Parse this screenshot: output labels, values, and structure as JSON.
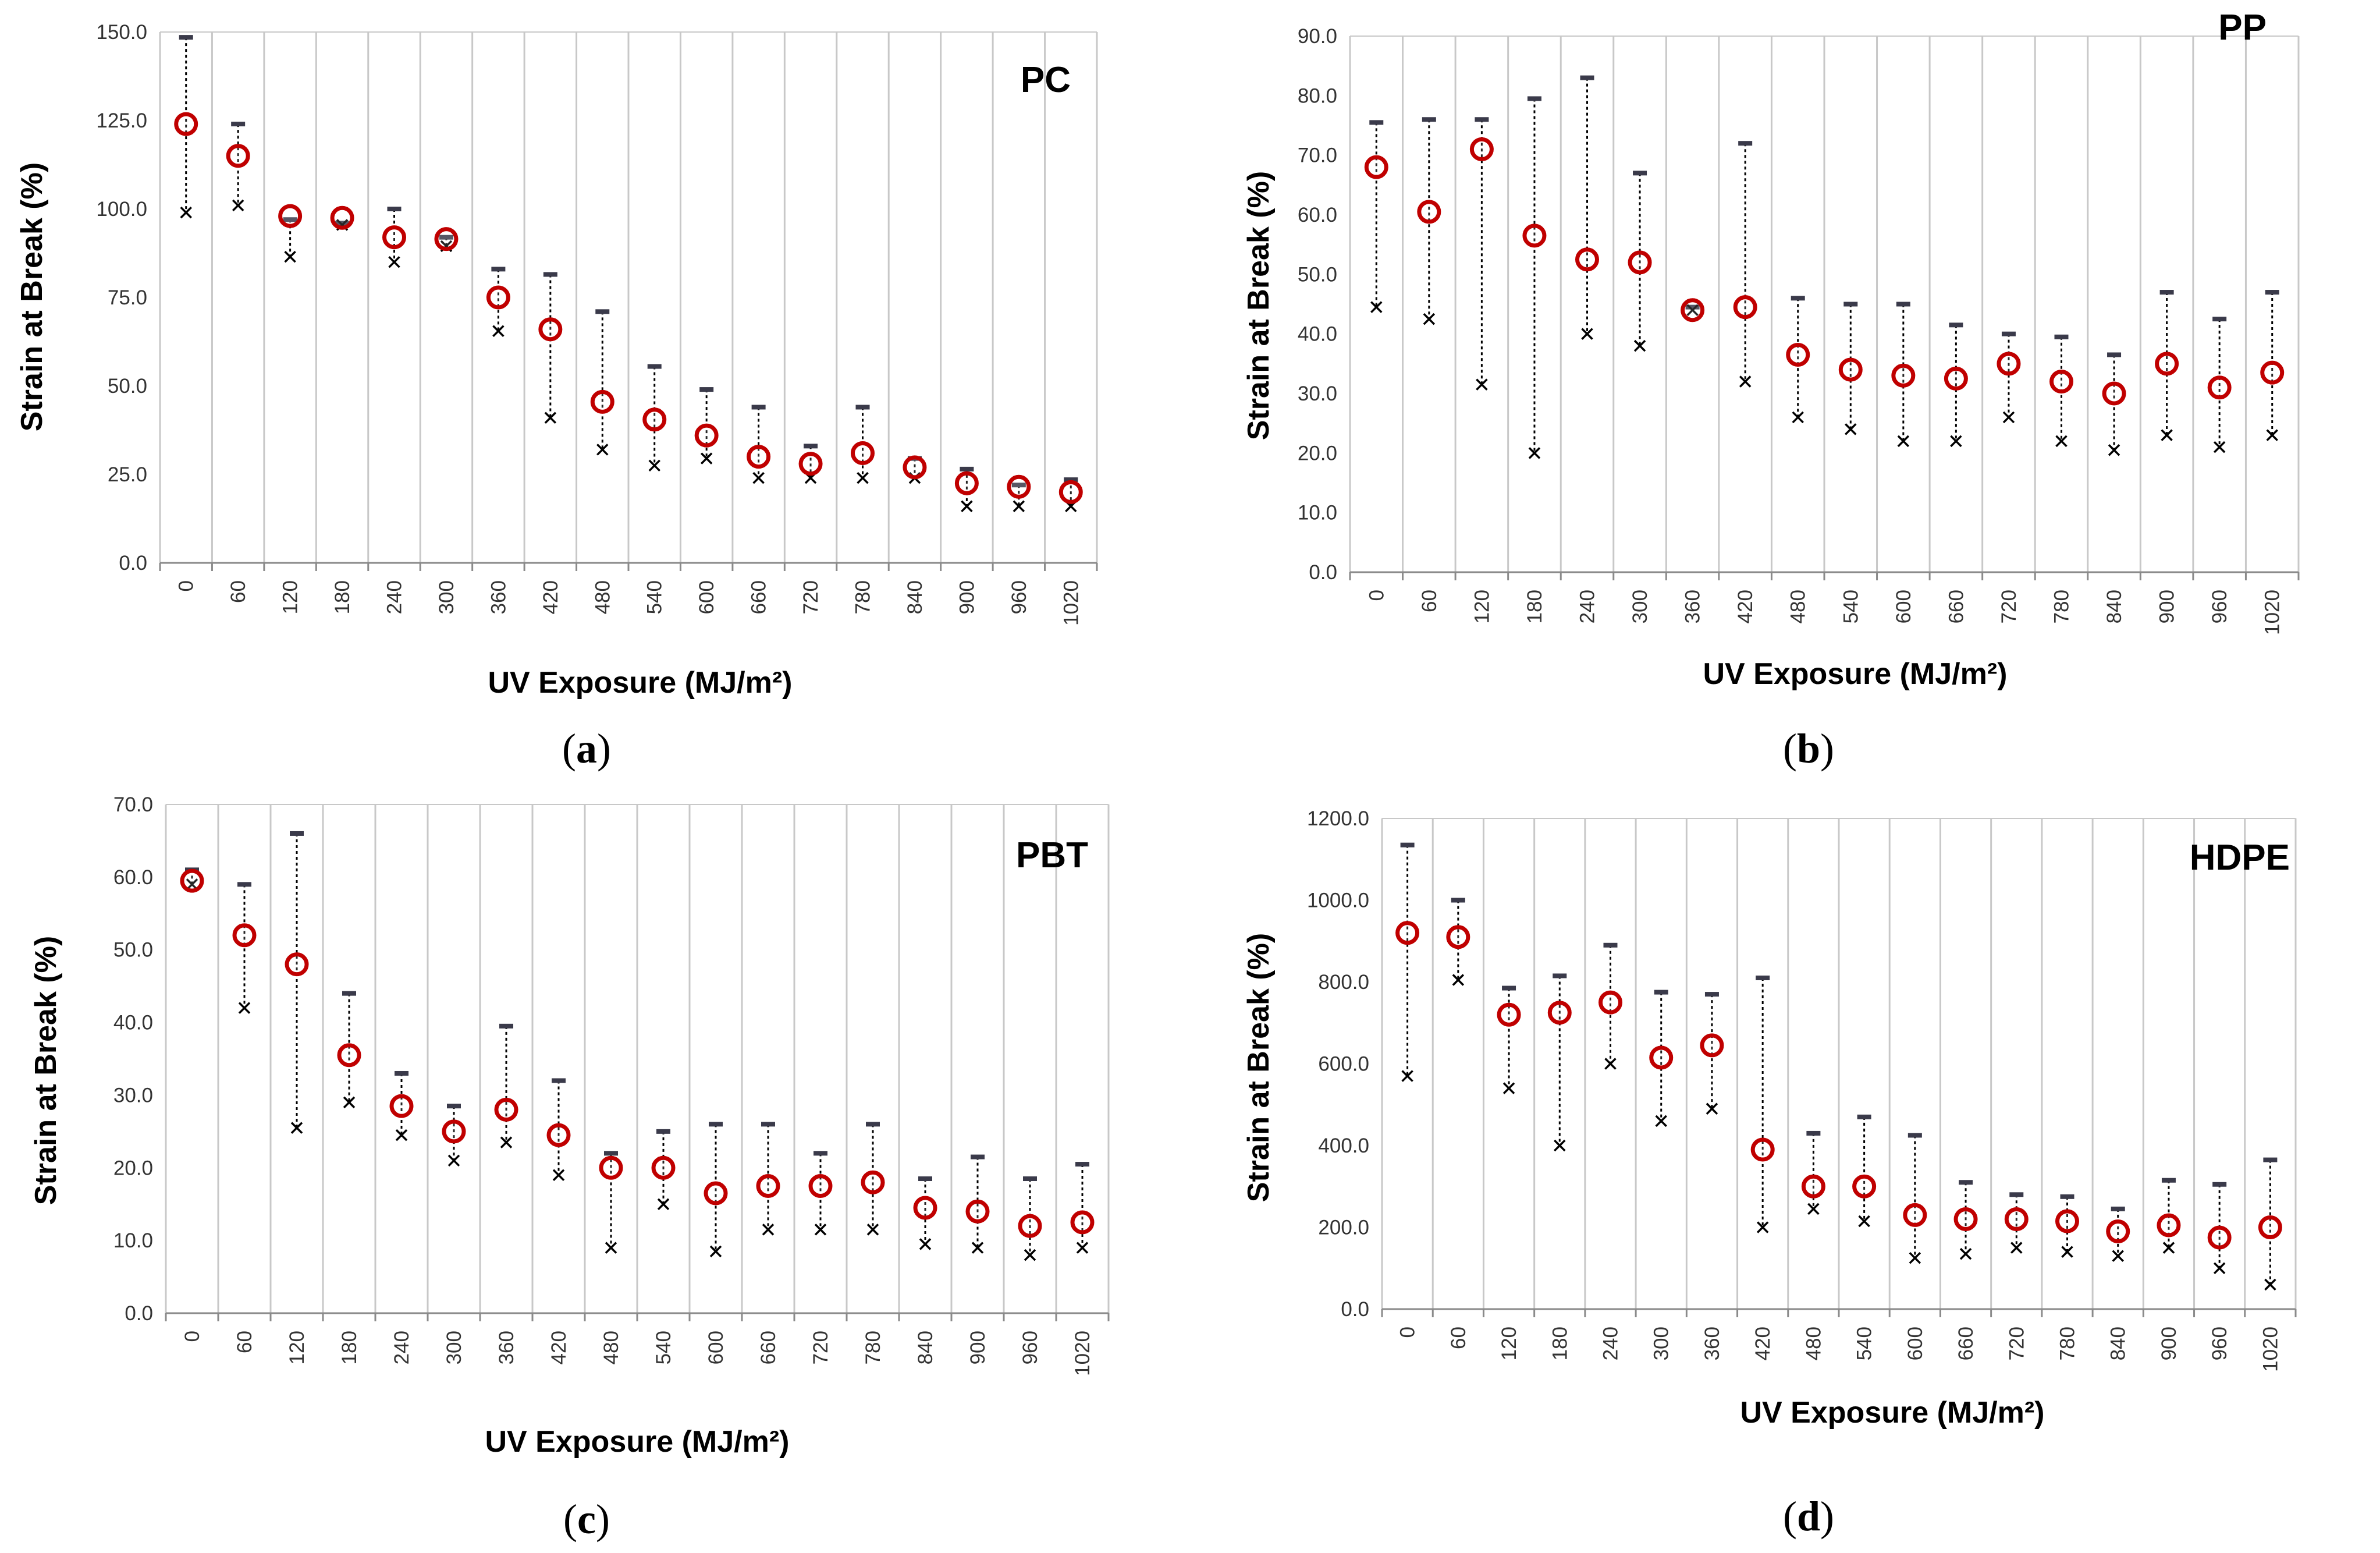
{
  "chart_data": [
    {
      "type": "scatter",
      "panel_id": "a",
      "caption_letter": "a",
      "title": "PC",
      "xlabel": "UV Exposure (MJ/m²)",
      "ylabel": "Strain at Break (%)",
      "categories": [
        "0",
        "60",
        "120",
        "180",
        "240",
        "300",
        "360",
        "420",
        "480",
        "540",
        "600",
        "660",
        "720",
        "780",
        "840",
        "900",
        "960",
        "1020"
      ],
      "yticks": [
        "0.0",
        "25.0",
        "50.0",
        "75.0",
        "100.0",
        "125.0",
        "150.0"
      ],
      "ylim": [
        0,
        150
      ],
      "grid": "vertical",
      "series": [
        {
          "name": "mean",
          "marker": "red circle",
          "values": [
            124,
            115,
            98,
            97.5,
            92,
            91.5,
            75,
            66,
            45.5,
            40.5,
            36,
            30,
            28,
            31,
            27,
            22.5,
            21.5,
            20
          ]
        },
        {
          "name": "max",
          "marker": "dash",
          "values": [
            148.5,
            124,
            97,
            96,
            100,
            92,
            83,
            81.5,
            71,
            55.5,
            49,
            44,
            33,
            44,
            29.5,
            26.5,
            22,
            23.5
          ]
        },
        {
          "name": "min",
          "marker": "x",
          "values": [
            99,
            101,
            86.5,
            95.5,
            85,
            89.5,
            65.5,
            41,
            32,
            27.5,
            29.5,
            24,
            24,
            24,
            24,
            16,
            16,
            16
          ]
        }
      ],
      "colors": {
        "mean": "#c00000",
        "max": "#3a3a4a",
        "min": "#000000",
        "grid": "#c8c8c8"
      }
    },
    {
      "type": "scatter",
      "panel_id": "b",
      "caption_letter": "b",
      "title": "PP",
      "xlabel": "UV Exposure (MJ/m²)",
      "ylabel": "Strain at Break (%)",
      "categories": [
        "0",
        "60",
        "120",
        "180",
        "240",
        "300",
        "360",
        "420",
        "480",
        "540",
        "600",
        "660",
        "720",
        "780",
        "840",
        "900",
        "960",
        "1020"
      ],
      "yticks": [
        "0.0",
        "10.0",
        "20.0",
        "30.0",
        "40.0",
        "50.0",
        "60.0",
        "70.0",
        "80.0",
        "90.0"
      ],
      "ylim": [
        0,
        90
      ],
      "grid": "vertical",
      "series": [
        {
          "name": "mean",
          "marker": "red circle",
          "values": [
            68,
            60.5,
            71,
            56.5,
            52.5,
            52,
            44,
            44.5,
            36.5,
            34,
            33,
            32.5,
            35,
            32,
            30,
            35,
            31,
            33.5
          ]
        },
        {
          "name": "max",
          "marker": "dash",
          "values": [
            75.5,
            76,
            76,
            79.5,
            83,
            67,
            44.5,
            72,
            46,
            45,
            45,
            41.5,
            40,
            39.5,
            36.5,
            47,
            42.5,
            47
          ]
        },
        {
          "name": "min",
          "marker": "x",
          "values": [
            44.5,
            42.5,
            31.5,
            20,
            40,
            38,
            44,
            32,
            26,
            24,
            22,
            22,
            26,
            22,
            20.5,
            23,
            21,
            23
          ]
        }
      ],
      "colors": {
        "mean": "#c00000",
        "max": "#3a3a4a",
        "min": "#000000",
        "grid": "#c8c8c8"
      }
    },
    {
      "type": "scatter",
      "panel_id": "c",
      "caption_letter": "c",
      "title": "PBT",
      "xlabel": "UV Exposure (MJ/m²)",
      "ylabel": "Strain at Break (%)",
      "categories": [
        "0",
        "60",
        "120",
        "180",
        "240",
        "300",
        "360",
        "420",
        "480",
        "540",
        "600",
        "660",
        "720",
        "780",
        "840",
        "900",
        "960",
        "1020"
      ],
      "yticks": [
        "0.0",
        "10.0",
        "20.0",
        "30.0",
        "40.0",
        "50.0",
        "60.0",
        "70.0"
      ],
      "ylim": [
        0,
        70
      ],
      "grid": "vertical",
      "series": [
        {
          "name": "mean",
          "marker": "red circle",
          "values": [
            59.5,
            52,
            48,
            35.5,
            28.5,
            25,
            28,
            24.5,
            20,
            20,
            16.5,
            17.5,
            17.5,
            18,
            14.5,
            14,
            12,
            12.5
          ]
        },
        {
          "name": "max",
          "marker": "dash",
          "values": [
            61,
            59,
            66,
            44,
            33,
            28.5,
            39.5,
            32,
            22,
            25,
            26,
            26,
            22,
            26,
            18.5,
            21.5,
            18.5,
            20.5
          ]
        },
        {
          "name": "min",
          "marker": "x",
          "values": [
            59,
            42,
            25.5,
            29,
            24.5,
            21,
            23.5,
            19,
            9,
            15,
            8.5,
            11.5,
            11.5,
            11.5,
            9.5,
            9,
            8,
            9
          ]
        }
      ],
      "colors": {
        "mean": "#c00000",
        "max": "#3a3a4a",
        "min": "#000000",
        "grid": "#c8c8c8"
      }
    },
    {
      "type": "scatter",
      "panel_id": "d",
      "caption_letter": "d",
      "title": "HDPE",
      "xlabel": "UV Exposure (MJ/m²)",
      "ylabel": "Strain at Break (%)",
      "categories": [
        "0",
        "60",
        "120",
        "180",
        "240",
        "300",
        "360",
        "420",
        "480",
        "540",
        "600",
        "660",
        "720",
        "780",
        "840",
        "900",
        "960",
        "1020"
      ],
      "yticks": [
        "0.0",
        "200.0",
        "400.0",
        "600.0",
        "800.0",
        "1000.0",
        "1200.0"
      ],
      "ylim": [
        0,
        1200
      ],
      "grid": "vertical",
      "series": [
        {
          "name": "mean",
          "marker": "red circle",
          "values": [
            920,
            910,
            720,
            725,
            750,
            615,
            645,
            390,
            300,
            300,
            230,
            220,
            220,
            215,
            190,
            205,
            175,
            200
          ]
        },
        {
          "name": "max",
          "marker": "dash",
          "values": [
            1135,
            1000,
            785,
            815,
            890,
            775,
            770,
            810,
            430,
            470,
            425,
            310,
            280,
            275,
            245,
            315,
            305,
            365
          ]
        },
        {
          "name": "min",
          "marker": "x",
          "values": [
            570,
            805,
            540,
            400,
            600,
            460,
            490,
            200,
            245,
            215,
            125,
            135,
            150,
            140,
            130,
            150,
            100,
            60
          ]
        }
      ],
      "colors": {
        "mean": "#c00000",
        "max": "#3a3a4a",
        "min": "#000000",
        "grid": "#c8c8c8"
      }
    }
  ]
}
